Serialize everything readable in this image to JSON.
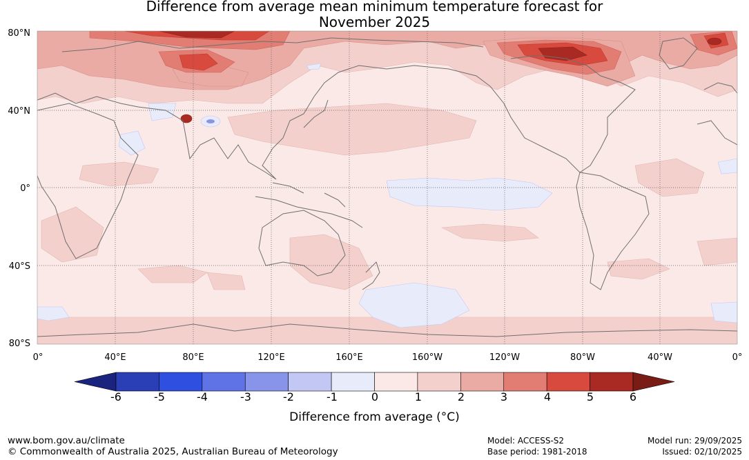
{
  "title_line1": "Difference from average mean minimum temperature forecast for",
  "title_line2": "November 2025",
  "lat_labels": [
    "80°N",
    "40°N",
    "0°",
    "40°S",
    "80°S"
  ],
  "lon_labels": [
    "0°",
    "40°E",
    "80°E",
    "120°E",
    "160°E",
    "160°W",
    "120°W",
    "80°W",
    "40°W",
    "0°"
  ],
  "colorbar": {
    "ticks": [
      "-6",
      "-5",
      "-4",
      "-3",
      "-2",
      "-1",
      "0",
      "1",
      "2",
      "3",
      "4",
      "5",
      "6"
    ],
    "colors": [
      "#1a237e",
      "#2a3fb5",
      "#2f4fe0",
      "#5f73e6",
      "#8794ea",
      "#c2c8f3",
      "#e8ebfa",
      "#fbe9e8",
      "#f4d0cd",
      "#eaaba5",
      "#e27d73",
      "#d94a3e",
      "#a92a22",
      "#7a1c16"
    ],
    "label": "Difference from average (°C)"
  },
  "footer": {
    "url": "www.bom.gov.au/climate",
    "copyright": "© Commonwealth of Australia 2025, Australian Bureau of Meteorology",
    "model": "Model: ACCESS-S2",
    "base_period": "Base period: 1981-2018",
    "model_run": "Model run: 29/09/2025",
    "issued": "Issued: 02/10/2025"
  }
}
